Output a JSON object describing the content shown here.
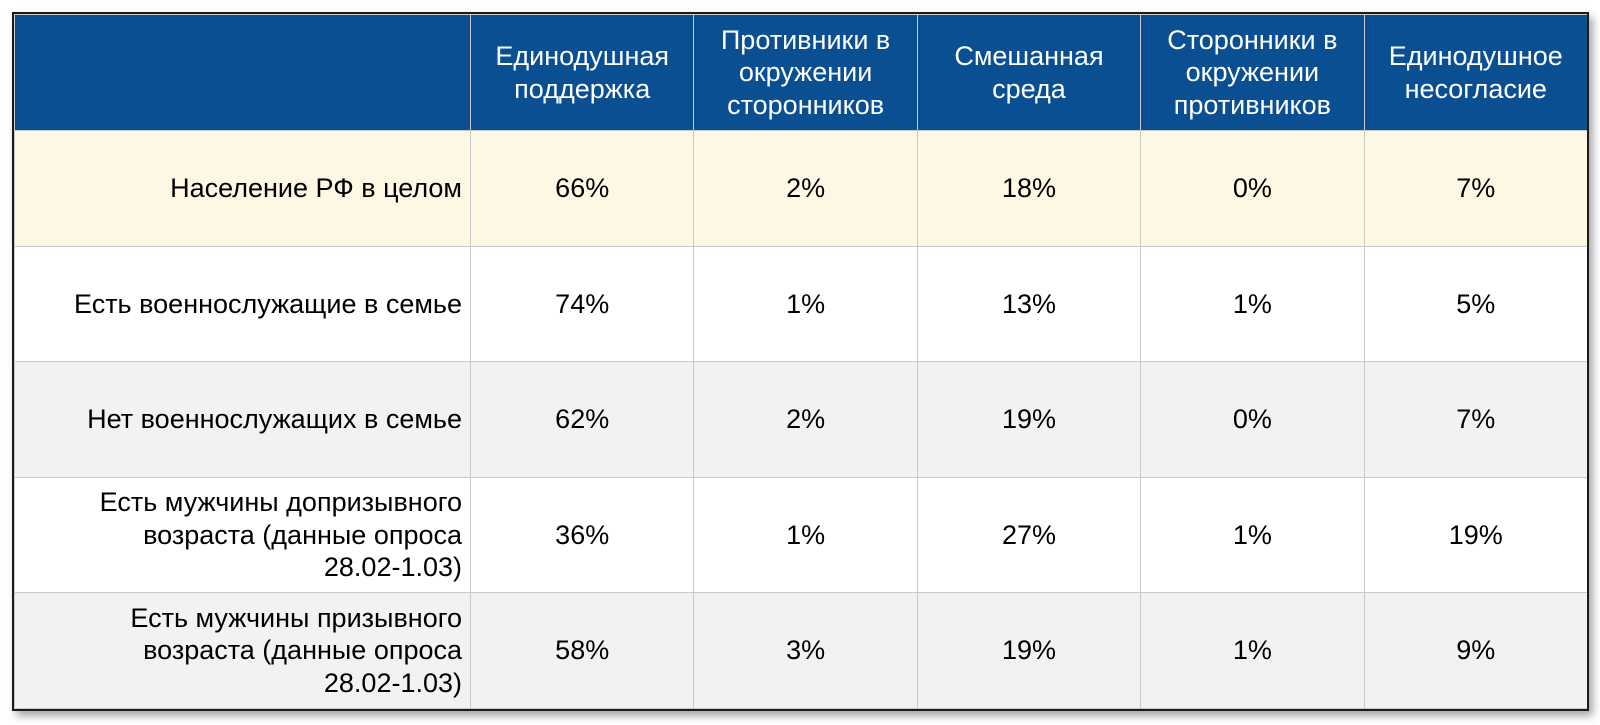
{
  "chart_data": {
    "type": "table",
    "columns": [
      "Единодушная\nподдержка",
      "Противники в\nокружении\nсторонников",
      "Смешанная\nсреда",
      "Сторонники в\nокружении\nпротивников",
      "Единодушное\nнесогласие"
    ],
    "rows": [
      {
        "label": "Население РФ в целом",
        "values": [
          "66%",
          "2%",
          "18%",
          "0%",
          "7%"
        ]
      },
      {
        "label": "Есть военнослужащие в семье",
        "values": [
          "74%",
          "1%",
          "13%",
          "1%",
          "5%"
        ]
      },
      {
        "label": "Нет военнослужащих в семье",
        "values": [
          "62%",
          "2%",
          "19%",
          "0%",
          "7%"
        ]
      },
      {
        "label": "Есть мужчины допризывного\nвозраста (данные опроса\n28.02-1.03)",
        "values": [
          "36%",
          "1%",
          "27%",
          "1%",
          "19%"
        ]
      },
      {
        "label": "Есть мужчины призывного\nвозраста (данные опроса\n28.02-1.03)",
        "values": [
          "58%",
          "3%",
          "19%",
          "1%",
          "9%"
        ]
      }
    ]
  },
  "colors": {
    "header_bg": "#0b4f93",
    "header_text": "#ffffff",
    "highlight_row_bg": "#fdf7e3",
    "alt_row_bg": "#f2f2f2",
    "grid": "#c9c9c9"
  }
}
